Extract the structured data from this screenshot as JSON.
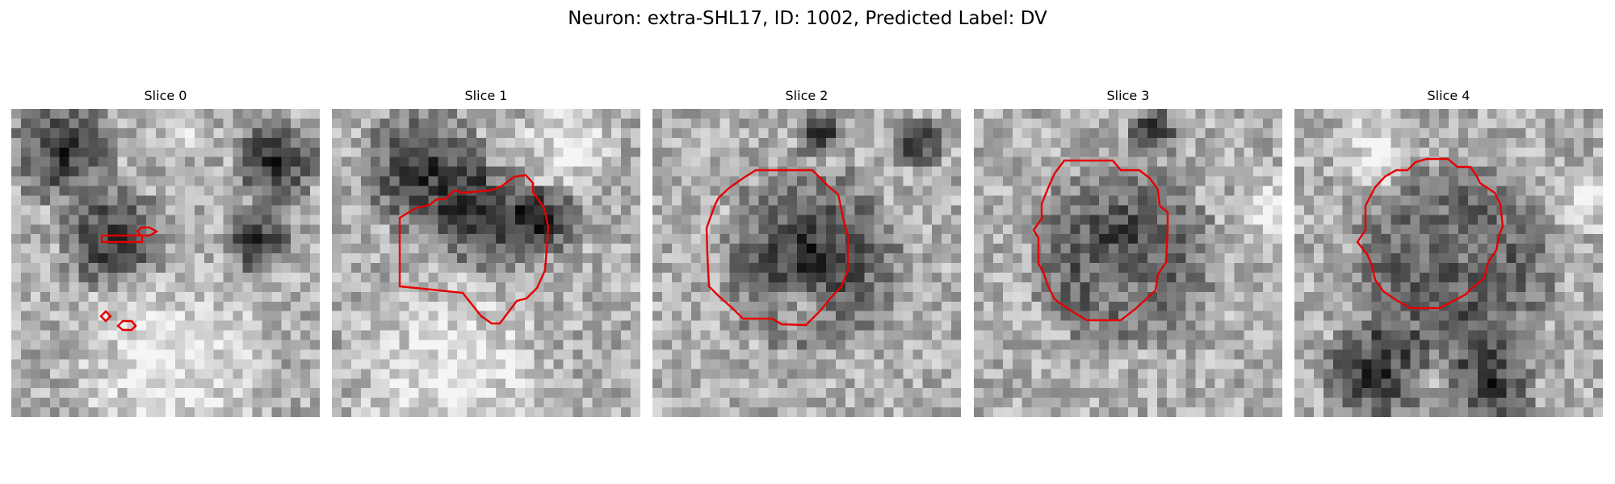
{
  "figure": {
    "title": "Neuron: extra-SHL17, ID: 1002, Predicted Label: DV",
    "colors": {
      "contour": "#e50000",
      "background": "#ffffff"
    },
    "slices": [
      {
        "label": "Slice 0",
        "seed": 11,
        "mask": []
      },
      {
        "label": "Slice 1",
        "seed": 23,
        "mask": []
      },
      {
        "label": "Slice 2",
        "seed": 37,
        "mask": []
      },
      {
        "label": "Slice 3",
        "seed": 41,
        "mask": []
      },
      {
        "label": "Slice 4",
        "seed": 59,
        "mask": []
      }
    ]
  }
}
